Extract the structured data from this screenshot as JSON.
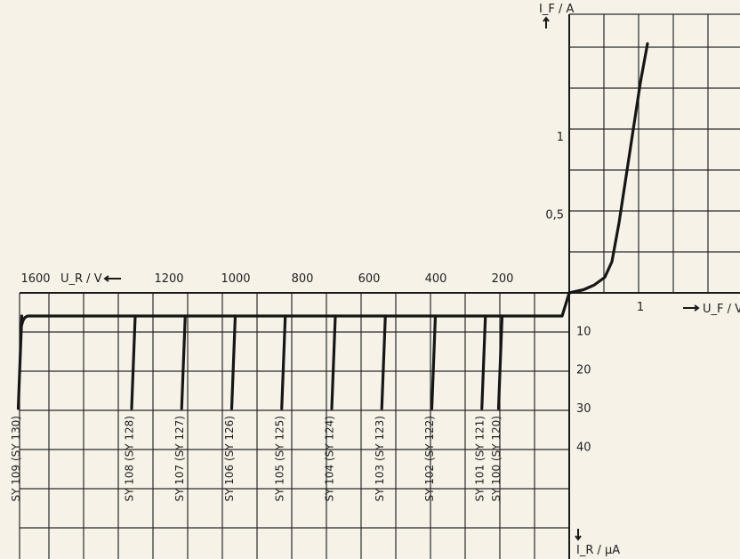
{
  "chart_data": {
    "type": "line",
    "title": "",
    "forward": {
      "ylabel": "I_F / A",
      "xlabel": "U_F / V",
      "y_ticks": [
        {
          "value": 0.5,
          "label": "0,5"
        },
        {
          "value": 1,
          "label": "1"
        }
      ],
      "x_ticks": [
        {
          "value": 1,
          "label": "1"
        }
      ],
      "xlim": [
        0,
        1.5
      ],
      "ylim": [
        0,
        1.7
      ],
      "grid": true,
      "curve": [
        [
          0,
          0
        ],
        [
          0.2,
          0.02
        ],
        [
          0.35,
          0.05
        ],
        [
          0.5,
          0.1
        ],
        [
          0.6,
          0.2
        ],
        [
          0.7,
          0.45
        ],
        [
          0.8,
          0.75
        ],
        [
          0.9,
          1.05
        ],
        [
          1.0,
          1.35
        ],
        [
          1.1,
          1.6
        ]
      ]
    },
    "reverse": {
      "xlabel": "U_R / V",
      "ylabel": "I_R / µA",
      "x_ticks": [
        {
          "value": 1600,
          "label": "1600"
        },
        {
          "value": 1200,
          "label": "1200"
        },
        {
          "value": 1000,
          "label": "1000"
        },
        {
          "value": 800,
          "label": "800"
        },
        {
          "value": 600,
          "label": "600"
        },
        {
          "value": 400,
          "label": "400"
        },
        {
          "value": 200,
          "label": "200"
        }
      ],
      "y_ticks": [
        {
          "value": 10,
          "label": "10"
        },
        {
          "value": 20,
          "label": "20"
        },
        {
          "value": 30,
          "label": "30"
        },
        {
          "value": 40,
          "label": "40"
        }
      ],
      "xlim": [
        0,
        1600
      ],
      "ylim": [
        0,
        60
      ],
      "grid": true,
      "leakage_current": 6,
      "series": [
        {
          "name": "SY 100 (SY 120)",
          "breakdown_voltage": 100
        },
        {
          "name": "SY 101 (SY 121)",
          "breakdown_voltage": 150
        },
        {
          "name": "SY 102 (SY 122)",
          "breakdown_voltage": 300
        },
        {
          "name": "SY 103 (SY 123)",
          "breakdown_voltage": 450
        },
        {
          "name": "SY 104 (SY 124)",
          "breakdown_voltage": 600
        },
        {
          "name": "SY 105 (SY 125)",
          "breakdown_voltage": 750
        },
        {
          "name": "SY 106 (SY 126)",
          "breakdown_voltage": 900
        },
        {
          "name": "SY 107 (SY 127)",
          "breakdown_voltage": 1050
        },
        {
          "name": "SY 108 (SY 128)",
          "breakdown_voltage": 1200
        },
        {
          "name": "SY 109 (SY 130)",
          "breakdown_voltage": 1500
        }
      ]
    }
  }
}
